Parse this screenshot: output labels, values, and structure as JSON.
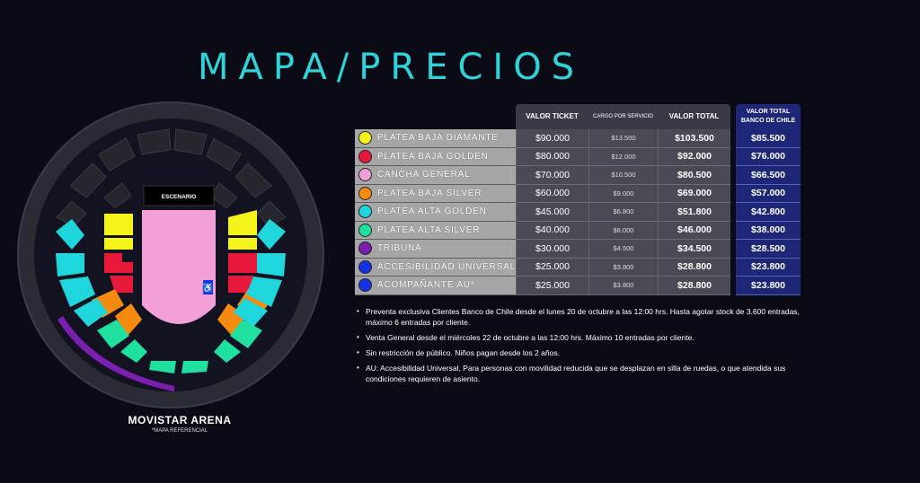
{
  "page_title": "MAPA/PRECIOS",
  "venue": {
    "name": "MOVISTAR ARENA",
    "note": "*MAPA REFERENCIAL",
    "stage_label": "ESCENARIO",
    "accessibility_icon": "wheelchair-icon"
  },
  "table": {
    "headers": {
      "valor_ticket": "VALOR TICKET",
      "cargo": "CARGO POR SERVICIO",
      "valor_total": "VALOR TOTAL",
      "valor_banco": "VALOR TOTAL BANCO DE CHILE"
    },
    "rows": [
      {
        "name": "PLATEA BAJA DIAMANTE",
        "color": "#f4f41a",
        "ticket": "$90.000",
        "cargo": "$13.500",
        "total": "$103.500",
        "banco": "$85.500"
      },
      {
        "name": "PLATEA BAJA GOLDEN",
        "color": "#e8183a",
        "ticket": "$80.000",
        "cargo": "$12.000",
        "total": "$92.000",
        "banco": "$76.000"
      },
      {
        "name": "CANCHA GENERAL",
        "color": "#f4a0d8",
        "ticket": "$70.000",
        "cargo": "$10.500",
        "total": "$80.500",
        "banco": "$66.500"
      },
      {
        "name": "PLATEA BAJA SILVER",
        "color": "#f58a10",
        "ticket": "$60.000",
        "cargo": "$9.000",
        "total": "$69.000",
        "banco": "$57.000"
      },
      {
        "name": "PLATEA ALTA GOLDEN",
        "color": "#1fd6dc",
        "ticket": "$45.000",
        "cargo": "$6.800",
        "total": "$51.800",
        "banco": "$42.800"
      },
      {
        "name": "PLATEA ALTA SILVER",
        "color": "#20e0a0",
        "ticket": "$40.000",
        "cargo": "$6.000",
        "total": "$46.000",
        "banco": "$38.000"
      },
      {
        "name": "TRIBUNA",
        "color": "#7a1fb0",
        "ticket": "$30.000",
        "cargo": "$4.500",
        "total": "$34.500",
        "banco": "$28.500"
      },
      {
        "name": "ACCESIBILIDAD UNIVERSAL",
        "color": "#1432e8",
        "ticket": "$25.000",
        "cargo": "$3.800",
        "total": "$28.800",
        "banco": "$23.800"
      },
      {
        "name": "ACOMPAÑANTE AU*",
        "color": "#1432e8",
        "ticket": "$25.000",
        "cargo": "$3.800",
        "total": "$28.800",
        "banco": "$23.800"
      }
    ]
  },
  "notes": [
    "Preventa exclusiva Clientes Banco de Chile desde el lunes 20 de octubre a las 12:00 hrs. Hasta agotar stock de 3.600 entradas, máximo 6 entradas por cliente.",
    "Venta General desde el miércoles 22 de octubre a las 12:00 hrs. Máximo 10 entradas por cliente.",
    "Sin restricción de público. Niños pagan desde los 2 años.",
    "AU: Accesibilidad Universal, Para personas con movilidad reducida que se desplazan en silla de ruedas, o que atendida sus condiciones requieren de asiento."
  ],
  "colors": {
    "title": "#2fd3d8",
    "background": "#0b0b16",
    "bank_column": "#1d2677",
    "diamante": "#f4f41a",
    "golden": "#e8183a",
    "cancha": "#f4a0d8",
    "silver": "#f58a10",
    "alta_golden": "#1fd6dc",
    "alta_silver": "#20e0a0",
    "tribuna": "#7a1fb0",
    "accesibilidad": "#1432e8"
  }
}
